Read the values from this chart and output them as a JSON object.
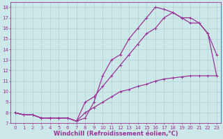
{
  "background_color": "#cde8e8",
  "line_color": "#993399",
  "grid_color": "#b0d0d0",
  "xlabel": "Windchill (Refroidissement éolien,°C)",
  "xlabel_color": "#993399",
  "xlim": [
    -0.5,
    23.5
  ],
  "ylim": [
    7.0,
    18.5
  ],
  "yticks": [
    7,
    8,
    9,
    10,
    11,
    12,
    13,
    14,
    15,
    16,
    17,
    18
  ],
  "xticks": [
    0,
    1,
    2,
    3,
    4,
    5,
    6,
    7,
    8,
    9,
    10,
    11,
    12,
    13,
    14,
    15,
    16,
    17,
    18,
    19,
    20,
    21,
    22,
    23
  ],
  "line1_x": [
    0,
    1,
    2,
    3,
    4,
    5,
    6,
    7,
    8,
    9,
    10,
    11,
    12,
    13,
    14,
    15,
    16,
    17,
    18,
    19,
    20,
    21,
    22,
    23
  ],
  "line1_y": [
    8.0,
    7.8,
    7.8,
    7.5,
    7.5,
    7.5,
    7.5,
    7.2,
    7.5,
    9.0,
    11.5,
    13.0,
    13.5,
    15.0,
    16.0,
    17.0,
    18.0,
    17.8,
    17.5,
    17.0,
    17.0,
    16.5,
    15.5,
    11.5
  ],
  "line2_x": [
    0,
    1,
    2,
    3,
    4,
    5,
    6,
    7,
    8,
    9,
    10,
    11,
    12,
    13,
    14,
    15,
    16,
    17,
    18,
    19,
    20,
    21,
    22,
    23
  ],
  "line2_y": [
    8.0,
    7.8,
    7.8,
    7.5,
    7.5,
    7.5,
    7.5,
    7.2,
    9.0,
    9.5,
    10.5,
    11.5,
    12.5,
    13.5,
    14.5,
    15.5,
    16.0,
    17.0,
    17.5,
    17.0,
    16.5,
    16.5,
    15.5,
    13.5
  ],
  "line3_x": [
    0,
    1,
    2,
    3,
    4,
    5,
    6,
    7,
    8,
    9,
    10,
    11,
    12,
    13,
    14,
    15,
    16,
    17,
    18,
    19,
    20,
    21,
    22,
    23
  ],
  "line3_y": [
    8.0,
    7.8,
    7.8,
    7.5,
    7.5,
    7.5,
    7.5,
    7.2,
    8.0,
    8.5,
    9.0,
    9.5,
    10.0,
    10.2,
    10.5,
    10.7,
    11.0,
    11.2,
    11.3,
    11.4,
    11.5,
    11.5,
    11.5,
    11.5
  ],
  "marker_size": 3.0,
  "line_width": 0.9,
  "tick_fontsize": 5.0,
  "xlabel_fontsize": 6.0
}
